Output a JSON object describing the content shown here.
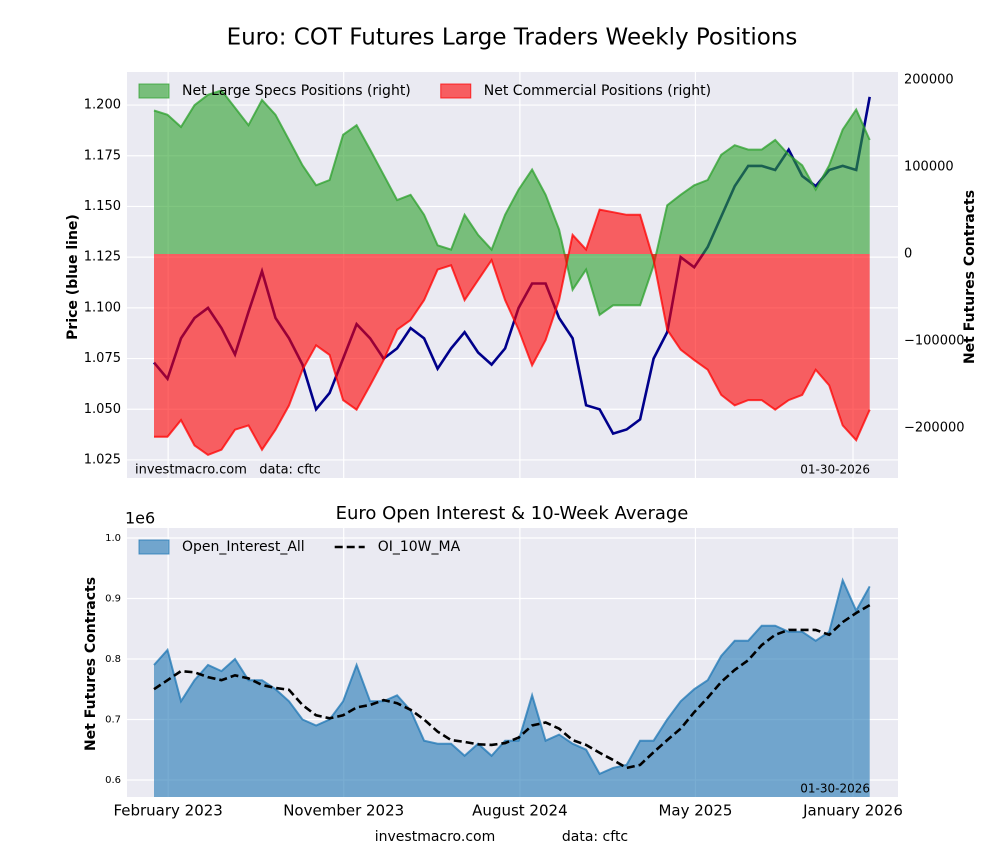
{
  "chart_data": [
    {
      "type": "area",
      "title": "Euro: COT Futures Large Traders Weekly Positions",
      "ylabel": "Price (blue line)",
      "y2label": "Net Futures Contracts",
      "source": "investmacro.com   data: cftc",
      "date_label": "01-30-2026",
      "x": [
        "2023-01-10",
        "2023-01-31",
        "2023-02-21",
        "2023-03-14",
        "2023-04-04",
        "2023-04-25",
        "2023-05-16",
        "2023-06-06",
        "2023-06-27",
        "2023-07-18",
        "2023-08-08",
        "2023-08-29",
        "2023-09-19",
        "2023-10-10",
        "2023-10-31",
        "2023-11-21",
        "2023-12-12",
        "2024-01-02",
        "2024-01-23",
        "2024-02-13",
        "2024-03-05",
        "2024-03-26",
        "2024-04-16",
        "2024-05-07",
        "2024-05-28",
        "2024-06-18",
        "2024-07-09",
        "2024-07-30",
        "2024-08-20",
        "2024-09-10",
        "2024-10-01",
        "2024-10-22",
        "2024-11-12",
        "2024-12-03",
        "2024-12-24",
        "2025-01-14",
        "2025-02-04",
        "2025-02-25",
        "2025-03-18",
        "2025-04-08",
        "2025-04-29",
        "2025-05-20",
        "2025-06-10",
        "2025-07-01",
        "2025-07-22",
        "2025-08-12",
        "2025-09-02",
        "2025-09-23",
        "2025-10-14",
        "2025-11-04",
        "2025-11-25",
        "2025-12-16",
        "2026-01-06",
        "2026-01-27"
      ],
      "xlim": [
        "2022-11-29",
        "2026-03-12"
      ],
      "xticks": [
        "2023-02-01",
        "2023-11-01",
        "2024-08-01",
        "2025-05-01",
        "2026-01-01"
      ],
      "ylim": [
        1.0161,
        1.2163
      ],
      "yticks": [
        1.025,
        {
          "value": 1.05,
          "label": "1.050"
        },
        1.075,
        {
          "value": 1.1,
          "label": "1.100"
        },
        1.125,
        {
          "value": 1.15,
          "label": "1.150"
        },
        1.175,
        {
          "value": 1.2,
          "label": "1.200"
        }
      ],
      "y2lim": [
        -257500,
        209200
      ],
      "y2ticks": [
        {
          "value": -200000,
          "label": "−200000"
        },
        {
          "value": -100000,
          "label": "−100000"
        },
        0,
        100000,
        200000
      ],
      "grid": true,
      "legend": "upper left",
      "series": [
        {
          "color": "#00008b",
          "style": "line",
          "values": [
            1.073,
            1.065,
            1.085,
            1.095,
            1.1,
            1.09,
            1.077,
            1.098,
            1.118,
            1.095,
            1.085,
            1.072,
            1.05,
            1.058,
            1.075,
            1.092,
            1.085,
            1.075,
            1.08,
            1.09,
            1.085,
            1.07,
            1.08,
            1.088,
            1.078,
            1.072,
            1.08,
            1.1,
            1.112,
            1.112,
            1.095,
            1.085,
            1.052,
            1.05,
            1.038,
            1.04,
            1.045,
            1.075,
            1.088,
            1.125,
            1.12,
            1.13,
            1.145,
            1.16,
            1.17,
            1.17,
            1.168,
            1.178,
            1.165,
            1.16,
            1.168,
            1.17,
            1.168,
            1.204
          ]
        },
        {
          "name": "Net Large Specs Positions (right)",
          "color": "#2ca02c",
          "style": "area",
          "axis": "y2",
          "values": [
            165000,
            160000,
            146000,
            171000,
            183000,
            188000,
            168000,
            148000,
            177000,
            160000,
            131000,
            102000,
            79000,
            85000,
            137000,
            148000,
            120000,
            91000,
            62000,
            68000,
            45000,
            10000,
            5000,
            45000,
            22000,
            5000,
            45000,
            74000,
            97000,
            68000,
            28000,
            -41000,
            -18000,
            -70000,
            -59000,
            -59000,
            -59000,
            -13000,
            56000,
            68000,
            79000,
            85000,
            114000,
            125000,
            120000,
            120000,
            131000,
            114000,
            102000,
            74000,
            102000,
            143000,
            166000,
            131000
          ]
        },
        {
          "name": "Net Commercial Positions (right)",
          "color": "#ff0000",
          "style": "area",
          "axis": "y2",
          "values": [
            -210000,
            -210000,
            -191000,
            -220000,
            -231000,
            -225000,
            -202000,
            -197000,
            -225000,
            -202000,
            -174000,
            -133000,
            -105000,
            -116000,
            -168000,
            -179000,
            -151000,
            -122000,
            -87000,
            -76000,
            -53000,
            -18000,
            -13000,
            -53000,
            -30000,
            -7000,
            -53000,
            -87000,
            -128000,
            -99000,
            -53000,
            22000,
            5000,
            51000,
            48000,
            45000,
            45000,
            -7000,
            -87000,
            -110000,
            -122000,
            -133000,
            -162000,
            -174000,
            -168000,
            -168000,
            -179000,
            -168000,
            -162000,
            -133000,
            -151000,
            -197000,
            -214000,
            -179000
          ]
        }
      ]
    },
    {
      "type": "area",
      "title": "Euro Open Interest & 10-Week Average",
      "ylabel": "Net Futures Contracts",
      "offset_label": "1e6",
      "date_label": "01-30-2026",
      "x": [
        "2023-01-10",
        "2023-01-31",
        "2023-02-21",
        "2023-03-14",
        "2023-04-04",
        "2023-04-25",
        "2023-05-16",
        "2023-06-06",
        "2023-06-27",
        "2023-07-18",
        "2023-08-08",
        "2023-08-29",
        "2023-09-19",
        "2023-10-10",
        "2023-10-31",
        "2023-11-21",
        "2023-12-12",
        "2024-01-02",
        "2024-01-23",
        "2024-02-13",
        "2024-03-05",
        "2024-03-26",
        "2024-04-16",
        "2024-05-07",
        "2024-05-28",
        "2024-06-18",
        "2024-07-09",
        "2024-07-30",
        "2024-08-20",
        "2024-09-10",
        "2024-10-01",
        "2024-10-22",
        "2024-11-12",
        "2024-12-03",
        "2024-12-24",
        "2025-01-14",
        "2025-02-04",
        "2025-02-25",
        "2025-03-18",
        "2025-04-08",
        "2025-04-29",
        "2025-05-20",
        "2025-06-10",
        "2025-07-01",
        "2025-07-22",
        "2025-08-12",
        "2025-09-02",
        "2025-09-23",
        "2025-10-14",
        "2025-11-04",
        "2025-11-25",
        "2025-12-16",
        "2026-01-06",
        "2026-01-27"
      ],
      "xlim": [
        "2022-11-29",
        "2026-03-12"
      ],
      "xticks": [
        {
          "value": "2023-02-01",
          "label": "February 2023"
        },
        {
          "value": "2023-11-01",
          "label": "November 2023"
        },
        {
          "value": "2024-08-01",
          "label": "August 2024"
        },
        {
          "value": "2025-05-01",
          "label": "May 2025"
        },
        {
          "value": "2026-01-01",
          "label": "January 2026"
        }
      ],
      "ylim": [
        0.5719,
        1.0165
      ],
      "yticks": [
        0.6,
        0.7,
        0.8,
        0.9,
        {
          "value": 1,
          "label": "1.0"
        }
      ],
      "grid": true,
      "legend": "upper left",
      "series": [
        {
          "name": "Open_Interest_All",
          "color": "#1f77b4",
          "style": "area",
          "values": [
            0.79,
            0.815,
            0.73,
            0.765,
            0.79,
            0.78,
            0.8,
            0.765,
            0.765,
            0.75,
            0.73,
            0.7,
            0.69,
            0.7,
            0.73,
            0.79,
            0.73,
            0.73,
            0.74,
            0.715,
            0.665,
            0.66,
            0.66,
            0.64,
            0.66,
            0.64,
            0.665,
            0.665,
            0.74,
            0.665,
            0.675,
            0.66,
            0.65,
            0.61,
            0.62,
            0.625,
            0.665,
            0.665,
            0.7,
            0.73,
            0.75,
            0.765,
            0.805,
            0.83,
            0.83,
            0.855,
            0.855,
            0.845,
            0.845,
            0.83,
            0.845,
            0.93,
            0.88,
            0.92
          ]
        },
        {
          "name": "OI_10W_MA",
          "color": "#000000",
          "style": "dashed",
          "values": [
            0.75,
            0.765,
            0.78,
            0.778,
            0.77,
            0.765,
            0.773,
            0.768,
            0.757,
            0.752,
            0.749,
            0.724,
            0.707,
            0.702,
            0.707,
            0.72,
            0.724,
            0.732,
            0.727,
            0.716,
            0.7,
            0.68,
            0.666,
            0.663,
            0.659,
            0.658,
            0.661,
            0.67,
            0.69,
            0.695,
            0.685,
            0.666,
            0.658,
            0.645,
            0.633,
            0.62,
            0.625,
            0.646,
            0.666,
            0.685,
            0.712,
            0.736,
            0.762,
            0.782,
            0.798,
            0.823,
            0.84,
            0.848,
            0.848,
            0.848,
            0.84,
            0.861,
            0.876,
            0.889
          ]
        }
      ]
    }
  ],
  "footer": {
    "source": "investmacro.com",
    "data": "data: cftc"
  }
}
